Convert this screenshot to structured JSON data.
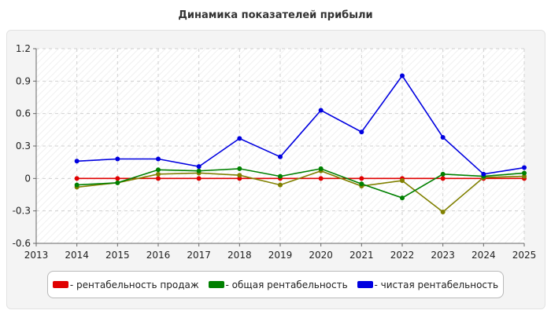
{
  "chart_data": {
    "type": "line",
    "title": "Динамика показателей прибыли",
    "xlabel": "",
    "ylabel": "",
    "x_ticks": [
      "2013",
      "2014",
      "2015",
      "2016",
      "2017",
      "2018",
      "2019",
      "2020",
      "2021",
      "2022",
      "2023",
      "2024",
      "2025"
    ],
    "y_ticks": [
      "-0.6",
      "-0.3",
      "0",
      "0.3",
      "0.6",
      "0.9",
      "1.2"
    ],
    "xlim": [
      2013,
      2025
    ],
    "ylim": [
      -0.6,
      1.2
    ],
    "grid": true,
    "legend_position": "bottom",
    "x": [
      2014,
      2015,
      2016,
      2017,
      2018,
      2019,
      2020,
      2021,
      2022,
      2023,
      2024,
      2025
    ],
    "series": [
      {
        "name": "- рентабельность продаж",
        "color": "#e00000",
        "values": [
          0,
          0,
          0,
          0,
          0,
          0,
          0,
          0,
          0,
          0,
          0,
          0
        ]
      },
      {
        "name": "- общая рентабельность",
        "color": "#008000",
        "values": [
          -0.06,
          -0.04,
          0.08,
          0.07,
          0.09,
          0.02,
          0.09,
          -0.05,
          -0.18,
          0.04,
          0.02,
          0.05
        ]
      },
      {
        "name": "",
        "color": "#808000",
        "values": [
          -0.08,
          -0.04,
          0.04,
          0.05,
          0.03,
          -0.06,
          0.07,
          -0.07,
          -0.02,
          -0.31,
          0.01,
          0.02
        ]
      },
      {
        "name": "- чистая рентабельность",
        "color": "#0000e0",
        "values": [
          0.16,
          0.18,
          0.18,
          0.11,
          0.37,
          0.2,
          0.63,
          0.43,
          0.95,
          0.38,
          0.04,
          0.1
        ]
      }
    ]
  }
}
